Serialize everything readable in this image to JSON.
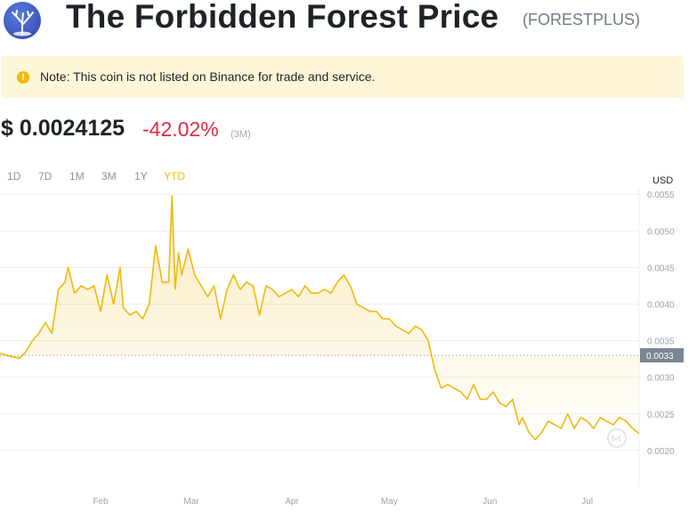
{
  "header": {
    "title": "The Forbidden Forest Price",
    "ticker": "(FORESTPLUS)",
    "logo_icon": "forest-tree-logo"
  },
  "note": {
    "text": "Note: This coin is not listed on Binance for trade and service.",
    "icon": "exclamation-icon",
    "icon_glyph": "!"
  },
  "price": {
    "value": "$ 0.0024125",
    "change": "-42.02%",
    "period": "(3M)"
  },
  "ranges": [
    {
      "label": "1D",
      "active": false
    },
    {
      "label": "7D",
      "active": false
    },
    {
      "label": "1M",
      "active": false
    },
    {
      "label": "3M",
      "active": false
    },
    {
      "label": "1Y",
      "active": false
    },
    {
      "label": "YTD",
      "active": true
    }
  ],
  "colors": {
    "line": "#f0b90b",
    "negative": "#e0294a",
    "grid": "#eceef1",
    "label": "#9aa2ad",
    "marker_bg": "#7b8595",
    "note_bg": "#fef6d8"
  },
  "chart_data": {
    "type": "area",
    "unit_label": "USD",
    "x_start": "2023-01-01",
    "x_end": "2023-07-17",
    "x_ticks": [
      {
        "date": "2023-02-01",
        "label": "Feb"
      },
      {
        "date": "2023-03-01",
        "label": "Mar"
      },
      {
        "date": "2023-04-01",
        "label": "Apr"
      },
      {
        "date": "2023-05-01",
        "label": "May"
      },
      {
        "date": "2023-06-01",
        "label": "Jun"
      },
      {
        "date": "2023-07-01",
        "label": "Jul"
      }
    ],
    "y_ticks": [
      "0.0020",
      "0.0025",
      "0.0030",
      "0.0035",
      "0.0040",
      "0.0045",
      "0.0050",
      "0.0055"
    ],
    "ylim": [
      0.0015,
      0.0056
    ],
    "reference_value": 0.0033,
    "reference_label": "0.0033",
    "grid": true,
    "series": [
      {
        "x": [
          "2023-01-01",
          "2023-01-03",
          "2023-01-05",
          "2023-01-07",
          "2023-01-09",
          "2023-01-11",
          "2023-01-13",
          "2023-01-15",
          "2023-01-17",
          "2023-01-19",
          "2023-01-21",
          "2023-01-22",
          "2023-01-24",
          "2023-01-26",
          "2023-01-28",
          "2023-01-30",
          "2023-02-01",
          "2023-02-03",
          "2023-02-05",
          "2023-02-07",
          "2023-02-08",
          "2023-02-10",
          "2023-02-12",
          "2023-02-14",
          "2023-02-16",
          "2023-02-18",
          "2023-02-20",
          "2023-02-22",
          "2023-02-23",
          "2023-02-24",
          "2023-02-25",
          "2023-02-26",
          "2023-02-28",
          "2023-03-02",
          "2023-03-04",
          "2023-03-06",
          "2023-03-08",
          "2023-03-10",
          "2023-03-12",
          "2023-03-14",
          "2023-03-16",
          "2023-03-18",
          "2023-03-20",
          "2023-03-22",
          "2023-03-24",
          "2023-03-26",
          "2023-03-28",
          "2023-03-30",
          "2023-04-01",
          "2023-04-03",
          "2023-04-05",
          "2023-04-07",
          "2023-04-09",
          "2023-04-11",
          "2023-04-13",
          "2023-04-15",
          "2023-04-17",
          "2023-04-19",
          "2023-04-21",
          "2023-04-23",
          "2023-04-25",
          "2023-04-27",
          "2023-04-29",
          "2023-05-01",
          "2023-05-03",
          "2023-05-05",
          "2023-05-07",
          "2023-05-09",
          "2023-05-11",
          "2023-05-13",
          "2023-05-15",
          "2023-05-17",
          "2023-05-19",
          "2023-05-21",
          "2023-05-23",
          "2023-05-25",
          "2023-05-27",
          "2023-05-29",
          "2023-05-31",
          "2023-06-02",
          "2023-06-04",
          "2023-06-06",
          "2023-06-08",
          "2023-06-10",
          "2023-06-11",
          "2023-06-13",
          "2023-06-15",
          "2023-06-17",
          "2023-06-19",
          "2023-06-21",
          "2023-06-23",
          "2023-06-25",
          "2023-06-27",
          "2023-06-29",
          "2023-07-01",
          "2023-07-03",
          "2023-07-05",
          "2023-07-07",
          "2023-07-09",
          "2023-07-11",
          "2023-07-13",
          "2023-07-15",
          "2023-07-17"
        ],
        "y": [
          0.00333,
          0.0033,
          0.00328,
          0.00326,
          0.00335,
          0.0035,
          0.0036,
          0.00375,
          0.0036,
          0.0042,
          0.0043,
          0.0045,
          0.00415,
          0.00425,
          0.0042,
          0.00425,
          0.0039,
          0.0044,
          0.004,
          0.0045,
          0.00395,
          0.00385,
          0.0039,
          0.0038,
          0.004,
          0.0048,
          0.0043,
          0.0043,
          0.00548,
          0.0042,
          0.0047,
          0.0044,
          0.00475,
          0.0044,
          0.00425,
          0.0041,
          0.00425,
          0.0038,
          0.0042,
          0.0044,
          0.0042,
          0.0043,
          0.00425,
          0.00385,
          0.00425,
          0.0042,
          0.0041,
          0.00415,
          0.0042,
          0.0041,
          0.00425,
          0.00415,
          0.00415,
          0.0042,
          0.00415,
          0.0043,
          0.0044,
          0.00425,
          0.004,
          0.00395,
          0.0039,
          0.0039,
          0.0038,
          0.0038,
          0.0037,
          0.00365,
          0.0036,
          0.0037,
          0.00365,
          0.0035,
          0.0031,
          0.00285,
          0.0029,
          0.00285,
          0.0028,
          0.0027,
          0.0029,
          0.0027,
          0.0027,
          0.0028,
          0.00265,
          0.0026,
          0.0027,
          0.00235,
          0.00245,
          0.00225,
          0.00215,
          0.00225,
          0.0024,
          0.00235,
          0.0023,
          0.0025,
          0.0023,
          0.00245,
          0.0024,
          0.0023,
          0.00245,
          0.0024,
          0.00235,
          0.00245,
          0.0024,
          0.0023,
          0.00223
        ]
      }
    ]
  }
}
